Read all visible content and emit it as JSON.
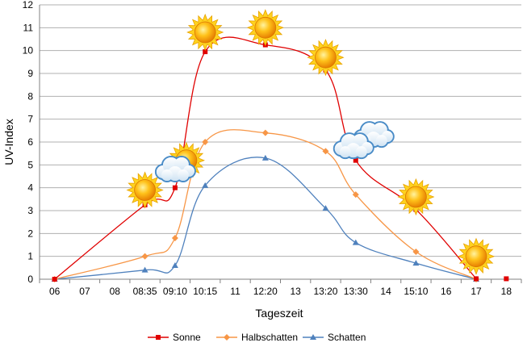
{
  "chart_data": {
    "type": "line",
    "title": "",
    "xlabel": "Tageszeit",
    "ylabel": "UV-Index",
    "ylim": [
      0,
      12
    ],
    "yticks": [
      0,
      1,
      2,
      3,
      4,
      5,
      6,
      7,
      8,
      9,
      10,
      11,
      12
    ],
    "grid": "horizontal",
    "legend_position": "bottom",
    "categories": [
      "06",
      "07",
      "08",
      "08:35",
      "09:10",
      "10:15",
      "11",
      "12:20",
      "13",
      "13:20",
      "13:30",
      "14",
      "15:10",
      "16",
      "17",
      "18"
    ],
    "series": [
      {
        "name": "Sonne",
        "color": "#e00000",
        "marker": "square",
        "points": [
          [
            "06",
            0
          ],
          [
            "08:35",
            3.25
          ],
          [
            "09:10",
            4
          ],
          [
            "10:15",
            9.95
          ],
          [
            "12:20",
            10.25
          ],
          [
            "13:20",
            9.15
          ],
          [
            "13:30",
            5.2
          ],
          [
            "15:10",
            3.05
          ],
          [
            "17",
            0.02
          ],
          [
            "18",
            0.02
          ]
        ]
      },
      {
        "name": "Halbschatten",
        "color": "#f79646",
        "marker": "diamond",
        "points": [
          [
            "06",
            0
          ],
          [
            "08:35",
            1
          ],
          [
            "09:10",
            1.8
          ],
          [
            "10:15",
            6
          ],
          [
            "12:20",
            6.4
          ],
          [
            "13:20",
            5.6
          ],
          [
            "13:30",
            3.7
          ],
          [
            "15:10",
            1.2
          ],
          [
            "17",
            0
          ]
        ]
      },
      {
        "name": "Schatten",
        "color": "#4f81bd",
        "marker": "triangle",
        "points": [
          [
            "06",
            0
          ],
          [
            "08:35",
            0.4
          ],
          [
            "09:10",
            0.6
          ],
          [
            "10:15",
            4.1
          ],
          [
            "12:20",
            5.3
          ],
          [
            "13:20",
            3.1
          ],
          [
            "13:30",
            1.6
          ],
          [
            "15:10",
            0.7
          ],
          [
            "17",
            0
          ]
        ]
      }
    ],
    "weather_icons": [
      {
        "icon": "sun-icon",
        "category": "08:35",
        "y": 3.9
      },
      {
        "icon": "sun-icon",
        "category": "09:10",
        "y": 5.2
      },
      {
        "icon": "cloud-icon",
        "category": "09:10",
        "y": 4.8
      },
      {
        "icon": "sun-icon",
        "category": "10:15",
        "y": 10.8
      },
      {
        "icon": "sun-icon",
        "category": "12:20",
        "y": 11
      },
      {
        "icon": "sun-icon",
        "category": "13:20",
        "y": 9.7
      },
      {
        "icon": "cloud-icon",
        "category": "13:30",
        "y": 6.1
      },
      {
        "icon": "sun-icon",
        "category": "15:10",
        "y": 3.6
      },
      {
        "icon": "sun-icon",
        "category": "17",
        "y": 1
      }
    ]
  }
}
